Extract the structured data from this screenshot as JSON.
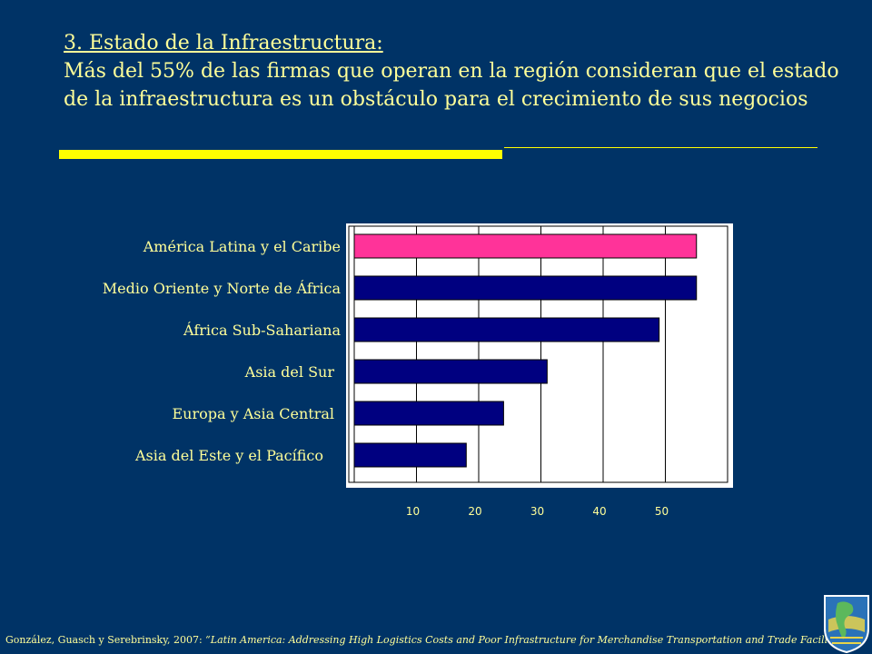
{
  "slide": {
    "title_line1": "3. Estado de la Infraestructura:",
    "title_line2": "Más del 55% de las firmas que operan en la región consideran que el estado de la infraestructura es un obstáculo para el crecimiento de sus negocios"
  },
  "chart_data": {
    "type": "bar",
    "orientation": "horizontal",
    "categories": [
      "América Latina y el Caribe",
      "Medio Oriente y Norte de África",
      "África Sub-Sahariana",
      "Asia del Sur",
      "Europa y Asia Central",
      "Asia del Este y el Pacífico"
    ],
    "values": [
      55,
      55,
      49,
      31,
      24,
      18
    ],
    "bar_colors": [
      "#ff3399",
      "#000080",
      "#000080",
      "#000080",
      "#000080",
      "#000080"
    ],
    "xlim": [
      0,
      60
    ],
    "xticks": [
      10,
      20,
      30,
      40,
      50
    ],
    "grid": true,
    "legend": "none"
  },
  "footer": {
    "citation": "González, Guasch y Serebrinsky, 2007: ",
    "work": "“Latin America: Addressing High Logistics Costs and Poor Infrastructure for Merchandise Transportation and Trade Facilitation”"
  },
  "colors": {
    "background": "#003366",
    "text": "#ffff99",
    "accent_rule": "#ffff00",
    "plot_area": "#ffffff"
  },
  "logo": {
    "icon": "americas-globe-logo-icon"
  }
}
